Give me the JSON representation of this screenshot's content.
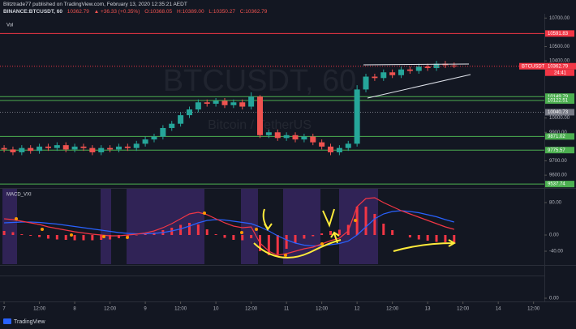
{
  "attribution": "Blitztrade77 published on TradingView.com, February 13, 2020 12:35:21 AEDT",
  "brand": "TradingView",
  "chart_data": [
    {
      "type": "candlestick",
      "title": "BINANCE:BTCUSDT, 60",
      "header_values": [
        "10362.79",
        "▲ +36.33 (+0.35%)",
        "O:10368.05",
        "H:10389.00",
        "L:10350.27",
        "C:10362.79"
      ],
      "watermark": [
        "BTCUSDT, 60",
        "Bitcoin / TetherUS"
      ],
      "volume_label": "Vol",
      "up_color": "#26a69a",
      "down_color": "#ef5350",
      "xlim": [
        -1.4,
        183.4
      ],
      "xticks": [
        {
          "value": 0,
          "label": "7"
        },
        {
          "value": 12,
          "label": "12:00"
        },
        {
          "value": 24,
          "label": "8"
        },
        {
          "value": 36,
          "label": "12:00"
        },
        {
          "value": 48,
          "label": "9"
        },
        {
          "value": 60,
          "label": "12:00"
        },
        {
          "value": 72,
          "label": "10"
        },
        {
          "value": 84,
          "label": "12:00"
        },
        {
          "value": 96,
          "label": "11"
        },
        {
          "value": 108,
          "label": "12:00"
        },
        {
          "value": 120,
          "label": "12"
        },
        {
          "value": 132,
          "label": "12:00"
        },
        {
          "value": 144,
          "label": "13"
        },
        {
          "value": 156,
          "label": "12:00"
        },
        {
          "value": 168,
          "label": "14"
        },
        {
          "value": 180,
          "label": "12:00"
        }
      ],
      "ylim": [
        9510,
        10730
      ],
      "yticks": [
        {
          "value": 10700,
          "label": "10700.00"
        },
        {
          "value": 10500,
          "label": "10500.00"
        },
        {
          "value": 10400,
          "label": "10400.00"
        },
        {
          "value": 10000,
          "label": "10000.00"
        },
        {
          "value": 9900,
          "label": "9900.00"
        },
        {
          "value": 9700,
          "label": "9700.00"
        },
        {
          "value": 9600,
          "label": "9600.00"
        }
      ],
      "x": [
        0,
        3,
        6,
        9,
        12,
        15,
        18,
        21,
        24,
        27,
        30,
        33,
        36,
        39,
        42,
        45,
        48,
        51,
        54,
        57,
        60,
        63,
        66,
        69,
        72,
        75,
        78,
        81,
        84,
        87,
        90,
        93,
        96,
        99,
        102,
        105,
        108,
        111,
        114,
        117,
        120,
        123,
        126,
        129,
        132,
        135,
        138,
        141,
        144,
        147,
        150,
        153
      ],
      "open": [
        9790,
        9780,
        9760,
        9790,
        9770,
        9800,
        9790,
        9810,
        9780,
        9800,
        9790,
        9760,
        9790,
        9780,
        9800,
        9790,
        9820,
        9850,
        9870,
        9930,
        9960,
        10020,
        10060,
        10110,
        10100,
        10120,
        10090,
        10110,
        10080,
        10150,
        9880,
        9900,
        9860,
        9880,
        9850,
        9870,
        9830,
        9800,
        9760,
        9790,
        9820,
        10200,
        10290,
        10280,
        10320,
        10300,
        10340,
        10330,
        10360,
        10350,
        10380,
        10368.05
      ],
      "high": [
        9810,
        9800,
        9810,
        9810,
        9820,
        9820,
        9830,
        9830,
        9820,
        9820,
        9810,
        9810,
        9810,
        9820,
        9820,
        9840,
        9870,
        9890,
        9950,
        9980,
        10040,
        10080,
        10130,
        10130,
        10140,
        10140,
        10130,
        10130,
        10180,
        10160,
        9920,
        9920,
        9900,
        9900,
        9890,
        9890,
        9850,
        9820,
        9810,
        9840,
        10230,
        10310,
        10310,
        10340,
        10340,
        10360,
        10360,
        10380,
        10380,
        10400,
        10400,
        10389
      ],
      "low": [
        9760,
        9740,
        9740,
        9750,
        9750,
        9770,
        9770,
        9760,
        9760,
        9770,
        9740,
        9740,
        9760,
        9760,
        9770,
        9770,
        9800,
        9830,
        9850,
        9910,
        9940,
        10000,
        10040,
        10080,
        10080,
        10070,
        10070,
        10060,
        10060,
        9860,
        9860,
        9840,
        9840,
        9830,
        9830,
        9810,
        9780,
        9740,
        9740,
        9770,
        9800,
        10180,
        10260,
        10260,
        10280,
        10280,
        10310,
        10310,
        10330,
        10330,
        10350,
        10350.27
      ],
      "close": [
        9780,
        9760,
        9790,
        9770,
        9800,
        9790,
        9810,
        9780,
        9800,
        9790,
        9760,
        9790,
        9780,
        9800,
        9790,
        9820,
        9850,
        9870,
        9930,
        9960,
        10020,
        10060,
        10110,
        10100,
        10120,
        10090,
        10110,
        10080,
        10150,
        9880,
        9900,
        9860,
        9880,
        9850,
        9870,
        9830,
        9800,
        9760,
        9790,
        9820,
        10200,
        10290,
        10280,
        10320,
        10300,
        10340,
        10330,
        10360,
        10350,
        10380,
        10370,
        10362.79
      ],
      "levels": [
        {
          "value": 10591.83,
          "color": "#f23645",
          "style": "solid"
        },
        {
          "value": 10149.79,
          "color": "#4caf50",
          "style": "solid"
        },
        {
          "value": 10122.51,
          "color": "#4caf50",
          "style": "solid"
        },
        {
          "value": 10040.73,
          "color": "#787b86",
          "style": "dotted"
        },
        {
          "value": 9871.02,
          "color": "#4caf50",
          "style": "solid"
        },
        {
          "value": 9775.57,
          "color": "#4caf50",
          "style": "solid"
        },
        {
          "value": 9537.74,
          "color": "#4caf50",
          "style": "solid"
        }
      ],
      "last": {
        "symbol": "BTCUSDT",
        "value": 10362.79,
        "timer": "24:41",
        "color": "#f23645"
      }
    },
    {
      "type": "line",
      "title": "MACD_VXI",
      "xlim": [
        -1.4,
        183.4
      ],
      "ylim": [
        -72,
        114
      ],
      "yticks": [
        {
          "value": 80,
          "label": "80.00"
        },
        {
          "value": 0,
          "label": "0.00"
        },
        {
          "value": -40,
          "label": "-40.00"
        }
      ],
      "x": [
        0,
        3,
        6,
        9,
        12,
        15,
        18,
        21,
        24,
        27,
        30,
        33,
        36,
        39,
        42,
        45,
        48,
        51,
        54,
        57,
        60,
        63,
        66,
        69,
        72,
        75,
        78,
        81,
        84,
        87,
        90,
        93,
        96,
        99,
        102,
        105,
        108,
        111,
        114,
        117,
        120,
        123,
        126,
        129,
        132,
        135,
        138,
        141,
        144,
        147,
        150,
        153
      ],
      "series": [
        {
          "style": "histogram",
          "color": "#f23645",
          "values": [
            10,
            7,
            2,
            -2,
            -5,
            -9,
            -11,
            -12,
            -13,
            -13,
            -13,
            -12,
            -11,
            -8,
            -4,
            -1,
            2,
            6,
            12,
            18,
            25,
            30,
            26,
            14,
            2,
            -7,
            -12,
            -13,
            -8,
            -40,
            -50,
            -48,
            -34,
            -20,
            -9,
            -3,
            4,
            10,
            13,
            25,
            70,
            70,
            52,
            28,
            12,
            0,
            -6,
            -11,
            -14,
            -17,
            -18,
            -18
          ]
        },
        {
          "style": "line",
          "color": "#2962ff",
          "values": [
            30,
            31,
            32,
            32,
            31,
            29,
            27,
            24,
            21,
            18,
            15,
            12,
            9,
            6,
            4,
            3,
            3,
            4,
            6,
            10,
            15,
            22,
            30,
            36,
            38,
            37,
            34,
            31,
            28,
            20,
            10,
            -2,
            -12,
            -20,
            -25,
            -27,
            -26,
            -24,
            -21,
            -15,
            0,
            20,
            40,
            52,
            58,
            60,
            58,
            55,
            50,
            45,
            38,
            32
          ]
        },
        {
          "style": "line",
          "color": "#f23645",
          "values": [
            40,
            38,
            34,
            30,
            26,
            20,
            16,
            12,
            8,
            5,
            2,
            0,
            -2,
            -2,
            0,
            2,
            5,
            10,
            18,
            28,
            40,
            52,
            56,
            50,
            40,
            30,
            22,
            18,
            20,
            -20,
            -40,
            -50,
            -46,
            -40,
            -34,
            -30,
            -22,
            -14,
            -8,
            10,
            70,
            90,
            92,
            80,
            70,
            60,
            52,
            44,
            36,
            28,
            20,
            14
          ]
        }
      ]
    },
    {
      "type": "line",
      "ylim": [
        -1,
        1
      ],
      "yticks": [
        {
          "value": 0,
          "label": "0.00"
        }
      ]
    }
  ]
}
